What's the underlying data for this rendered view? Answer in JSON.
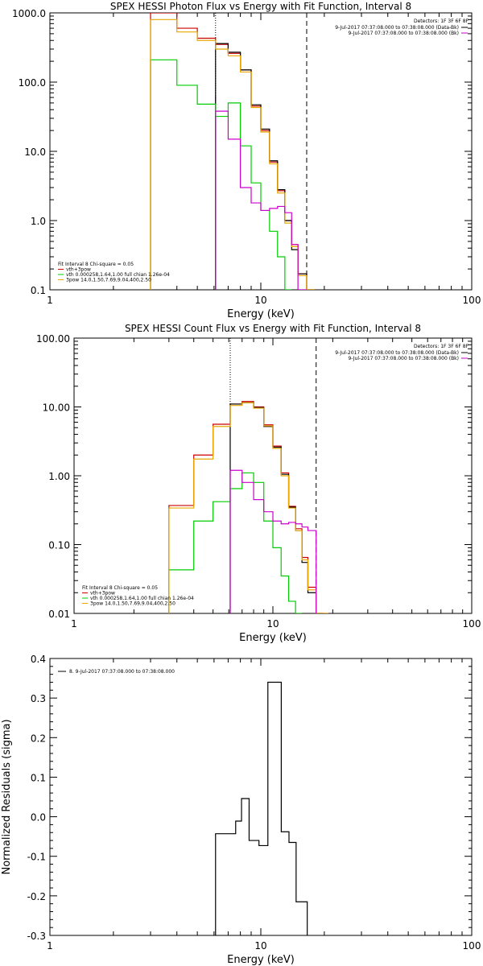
{
  "chart_data": [
    {
      "type": "line",
      "title": "SPEX HESSI Photon Flux vs Energy with Fit Function, Interval 8",
      "xlabel": "Energy (keV)",
      "ylabel": "",
      "xscale": "log",
      "yscale": "log",
      "xlim": [
        1,
        100
      ],
      "ylim": [
        0.1,
        1000
      ],
      "xticks": [
        1,
        10,
        100
      ],
      "xtick_labels": [
        "1",
        "10",
        "100"
      ],
      "yticks": [
        0.1,
        1,
        10,
        100,
        1000
      ],
      "ytick_labels": [
        "0.1",
        "1.0",
        "10.0",
        "100.0",
        "1000.0"
      ],
      "vlines": [
        {
          "x": 6.1,
          "style": "dotted"
        },
        {
          "x": 16.5,
          "style": "dashed"
        }
      ],
      "vertical_marker": {
        "x": 6.1,
        "color": "#cc00cc"
      },
      "detectors_text": "Detectors: 1F 3F 6F 8F",
      "time_labels": [
        {
          "text": "9-Jul-2017 07:37:08.000 to 07:38:08.000 (Data-Bk)",
          "color": "#000000"
        },
        {
          "text": "9-Jul-2017 07:37:08.000 to 07:38:08.000 (Bk)",
          "color": "#cc00cc"
        }
      ],
      "fit_legend": {
        "header": "Fit Interval 8   Chi-square = 0.05",
        "items": [
          {
            "label": "vth+3pow",
            "color": "#cc0000"
          },
          {
            "label": "vth 0.000258,1.64,1.00  full chian 1.26e-04",
            "color": "#00cc00"
          },
          {
            "label": "3pow 14.0,1.50,7.69,9.04,400,2.50",
            "color": "#e8a800"
          }
        ]
      },
      "series": [
        {
          "name": "vth+3pow",
          "color": "#cc0000",
          "step": true,
          "edges": [
            3,
            4,
            5,
            6.1,
            7,
            8,
            9,
            10,
            11,
            12,
            13,
            14,
            15,
            16.5,
            18
          ],
          "values": [
            1000,
            600,
            430,
            350,
            260,
            150,
            45,
            20,
            7,
            2.7,
            1.0,
            0.45,
            0.17,
            0.1
          ]
        },
        {
          "name": "data",
          "color": "#000000",
          "step": true,
          "edges": [
            6.1,
            7,
            8,
            9,
            10,
            11,
            12,
            13,
            14,
            15,
            16.5,
            18
          ],
          "values": [
            360,
            270,
            150,
            47,
            21,
            7.3,
            2.8,
            1.0,
            0.38,
            0.17,
            0.1
          ]
        },
        {
          "name": "vth",
          "color": "#00cc00",
          "step": true,
          "edges": [
            3,
            4,
            5,
            6.1,
            7,
            8,
            9,
            10,
            11,
            12,
            13,
            14
          ],
          "values": [
            210,
            90,
            48,
            32,
            50,
            12,
            3.5,
            1.4,
            0.7,
            0.3,
            0.1
          ]
        },
        {
          "name": "3pow",
          "color": "#e8a800",
          "step": true,
          "edges": [
            3,
            4,
            5,
            6.1,
            7,
            8,
            9,
            10,
            11,
            12,
            13,
            14,
            15,
            16.5,
            18
          ],
          "values": [
            800,
            530,
            400,
            300,
            240,
            140,
            43,
            19,
            6.6,
            2.5,
            0.92,
            0.42,
            0.16,
            0.1
          ]
        },
        {
          "name": "Bk",
          "color": "#cc00cc",
          "step": true,
          "edges": [
            6.1,
            7,
            8,
            9,
            10,
            11,
            12,
            13,
            14,
            15,
            16.5
          ],
          "values": [
            38,
            15,
            3,
            1.8,
            1.4,
            1.5,
            1.6,
            1.3,
            0.45,
            0.1
          ]
        }
      ]
    },
    {
      "type": "line",
      "title": "SPEX HESSI Count Flux vs Energy with Fit Function, Interval 8",
      "xlabel": "Energy (keV)",
      "ylabel": "",
      "xscale": "log",
      "yscale": "log",
      "xlim": [
        1,
        100
      ],
      "ylim": [
        0.01,
        100
      ],
      "xticks": [
        1,
        10,
        100
      ],
      "xtick_labels": [
        "1",
        "10",
        "100"
      ],
      "yticks": [
        0.01,
        0.1,
        1,
        10,
        100
      ],
      "ytick_labels": [
        "0.01",
        "0.10",
        "1.00",
        "10.00",
        "100.00"
      ],
      "vlines": [
        {
          "x": 6.1,
          "style": "dotted"
        },
        {
          "x": 16.5,
          "style": "dashed"
        }
      ],
      "vertical_marker": {
        "x": 6.1,
        "color": "#cc00cc"
      },
      "detectors_text": "Detectors: 1F 3F 6F 8F",
      "time_labels": [
        {
          "text": "9-Jul-2017 07:37:08.000 to 07:38:08.000 (Data-Bk)",
          "color": "#000000"
        },
        {
          "text": "9-Jul-2017 07:37:08.000 to 07:38:08.000 (Bk)",
          "color": "#cc00cc"
        }
      ],
      "fit_legend": {
        "header": "Fit Interval 8   Chi-square = 0.05",
        "items": [
          {
            "label": "vth+3pow",
            "color": "#cc0000"
          },
          {
            "label": "vth 0.000258,1.64,1.00  full chian 1.26e-04",
            "color": "#00cc00"
          },
          {
            "label": "3pow 14.0,1.50,7.69,9.04,400,2.50",
            "color": "#e8a800"
          }
        ]
      },
      "series": [
        {
          "name": "vth+3pow",
          "color": "#cc0000",
          "step": true,
          "edges": [
            3,
            4,
            5,
            6.1,
            7,
            8,
            9,
            10,
            11,
            12,
            13,
            14,
            15,
            16.5,
            18,
            19
          ],
          "values": [
            0.37,
            2.0,
            5.6,
            11,
            12,
            10,
            5.5,
            2.7,
            1.1,
            0.36,
            0.17,
            0.065,
            0.024,
            0.01,
            0.01
          ]
        },
        {
          "name": "data",
          "color": "#000000",
          "step": true,
          "edges": [
            6.1,
            7,
            8,
            9,
            10,
            11,
            12,
            13,
            14,
            15,
            16.5,
            18
          ],
          "values": [
            11,
            11.5,
            9.8,
            5.2,
            2.6,
            1.05,
            0.35,
            0.16,
            0.055,
            0.02,
            0.01
          ]
        },
        {
          "name": "vth",
          "color": "#00cc00",
          "step": true,
          "edges": [
            3,
            4,
            5,
            6.1,
            7,
            8,
            9,
            10,
            11,
            12,
            13,
            14
          ],
          "values": [
            0.043,
            0.22,
            0.42,
            0.65,
            1.1,
            0.8,
            0.22,
            0.09,
            0.035,
            0.015,
            0.01
          ]
        },
        {
          "name": "3pow",
          "color": "#e8a800",
          "step": true,
          "edges": [
            3,
            4,
            5,
            6.1,
            7,
            8,
            9,
            10,
            11,
            12,
            13,
            14,
            15,
            16.5,
            18,
            19
          ],
          "values": [
            0.34,
            1.75,
            5.2,
            10.5,
            11.5,
            9.6,
            5.3,
            2.5,
            1.0,
            0.34,
            0.16,
            0.06,
            0.022,
            0.01,
            0.01
          ]
        },
        {
          "name": "Bk",
          "color": "#cc00cc",
          "step": true,
          "edges": [
            6.1,
            7,
            8,
            9,
            10,
            11,
            12,
            13,
            14,
            15,
            16.5
          ],
          "values": [
            1.2,
            0.8,
            0.45,
            0.3,
            0.22,
            0.2,
            0.21,
            0.2,
            0.18,
            0.16
          ]
        }
      ]
    },
    {
      "type": "line",
      "title": "",
      "xlabel": "Energy (keV)",
      "ylabel": "Normalized Residuals (sigma)",
      "xscale": "log",
      "yscale": "linear",
      "xlim": [
        1,
        100
      ],
      "ylim": [
        -0.3,
        0.4
      ],
      "xticks": [
        1,
        10,
        100
      ],
      "xtick_labels": [
        "1",
        "10",
        "100"
      ],
      "yticks": [
        -0.3,
        -0.2,
        -0.1,
        0.0,
        0.1,
        0.2,
        0.3,
        0.4
      ],
      "ytick_labels": [
        "-0.3",
        "-0.2",
        "-0.1",
        "0.0",
        "0.1",
        "0.2",
        "0.3",
        "0.4"
      ],
      "legend_label": "8. 9-Jul-2017 07:37:08.000 to 07:38:08.000",
      "series": [
        {
          "name": "8. 9-Jul-2017 07:37:08.000 to 07:38:08.000",
          "color": "#000000",
          "step": true,
          "edges": [
            6.1,
            7,
            7.6,
            8.1,
            8.8,
            9.8,
            10.8,
            11.4,
            12.5,
            13.6,
            14.7,
            15.9,
            16.6
          ],
          "values": [
            -0.043,
            -0.043,
            -0.011,
            0.046,
            -0.06,
            -0.073,
            0.34,
            0.34,
            -0.038,
            -0.065,
            -0.215,
            -0.215
          ]
        }
      ]
    }
  ]
}
